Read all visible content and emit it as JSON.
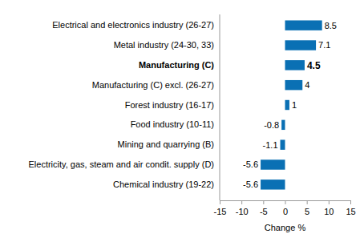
{
  "chart_data": {
    "type": "bar",
    "orientation": "horizontal",
    "categories": [
      "Electrical and electronics industry (26-27)",
      "Metal industry (24-30, 33)",
      "Manufacturing (C)",
      "Manufacturing (C) excl. (26-27)",
      "Forest industry (16-17)",
      "Food industry (10-11)",
      "Mining and quarrying (B)",
      "Electricity, gas, steam and air condit. supply (D)",
      "Chemical industry (19-22)"
    ],
    "values": [
      8.5,
      7.1,
      4.5,
      4.0,
      1.0,
      -0.8,
      -1.1,
      -5.6,
      -5.6
    ],
    "color": "#0a70b4",
    "xlabel": "Change %",
    "xlim": [
      -15,
      15
    ],
    "xticks": [
      -15,
      -10,
      -5,
      0,
      5,
      10,
      15
    ],
    "grid": false,
    "data_labels": true
  }
}
